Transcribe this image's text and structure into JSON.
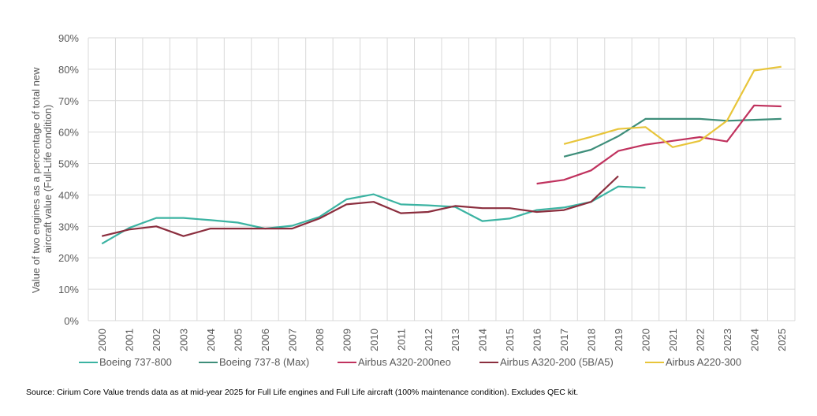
{
  "chart_data": {
    "type": "line",
    "title": "",
    "xlabel": "",
    "ylabel": "Value of two engines as a percentage of total new aircraft value (Full-Life condition)",
    "ylabel_lines": [
      "Value of two engines as a percentage of total new",
      "aircraft value (Full-Life condition)"
    ],
    "ylim": [
      0,
      90
    ],
    "y_ticks": [
      0,
      10,
      20,
      30,
      40,
      50,
      60,
      70,
      80,
      90
    ],
    "y_tick_labels": [
      "0%",
      "10%",
      "20%",
      "30%",
      "40%",
      "50%",
      "60%",
      "70%",
      "80%",
      "90%"
    ],
    "grid": true,
    "legend_position": "bottom",
    "categories": [
      "2000",
      "2001",
      "2002",
      "2003",
      "2004",
      "2005",
      "2006",
      "2007",
      "2008",
      "2009",
      "2010",
      "2011",
      "2012",
      "2013",
      "2014",
      "2015",
      "2016",
      "2017",
      "2018",
      "2019",
      "2020",
      "2021",
      "2022",
      "2023",
      "2024",
      "2025"
    ],
    "series": [
      {
        "name": "Boeing 737-800",
        "color": "#3bb3a2",
        "values": [
          24.5,
          29.5,
          32.7,
          32.7,
          32.0,
          31.2,
          29.3,
          30.2,
          33.0,
          38.6,
          40.2,
          37.0,
          36.7,
          36.2,
          31.7,
          32.5,
          35.2,
          36.0,
          37.8,
          42.7,
          42.3,
          null,
          null,
          null,
          null,
          null
        ]
      },
      {
        "name": "Boeing 737-8 (Max)",
        "color": "#3e8e7a",
        "values": [
          null,
          null,
          null,
          null,
          null,
          null,
          null,
          null,
          null,
          null,
          null,
          null,
          null,
          null,
          null,
          null,
          null,
          52.2,
          54.4,
          58.7,
          64.2,
          64.2,
          64.2,
          63.6,
          63.9,
          64.2
        ]
      },
      {
        "name": "Airbus A320-200neo",
        "color": "#c0325e",
        "values": [
          null,
          null,
          null,
          null,
          null,
          null,
          null,
          null,
          null,
          null,
          null,
          null,
          null,
          null,
          null,
          null,
          43.6,
          44.8,
          47.8,
          54.0,
          56.0,
          57.2,
          58.4,
          57.0,
          68.5,
          68.2
        ]
      },
      {
        "name": "Airbus A320-200 (5B/A5)",
        "color": "#8b2e3e",
        "values": [
          26.9,
          29.0,
          30.0,
          26.9,
          29.3,
          29.3,
          29.3,
          29.3,
          32.5,
          37.0,
          37.8,
          34.2,
          34.6,
          36.5,
          35.8,
          35.8,
          34.6,
          35.2,
          37.8,
          46.0,
          null,
          null,
          null,
          null,
          null,
          null
        ]
      },
      {
        "name": "Airbus A220-300",
        "color": "#e8c53a",
        "values": [
          null,
          null,
          null,
          null,
          null,
          null,
          null,
          null,
          null,
          null,
          null,
          null,
          null,
          null,
          null,
          null,
          null,
          56.2,
          58.5,
          61.0,
          61.6,
          55.2,
          57.2,
          63.6,
          79.6,
          80.8
        ]
      }
    ]
  },
  "legend": {
    "items": [
      {
        "label": "Boeing 737-800",
        "color": "#3bb3a2"
      },
      {
        "label": "Boeing 737-8 (Max)",
        "color": "#3e8e7a"
      },
      {
        "label": "Airbus A320-200neo",
        "color": "#c0325e"
      },
      {
        "label": "Airbus A320-200 (5B/A5)",
        "color": "#8b2e3e"
      },
      {
        "label": "Airbus A220-300",
        "color": "#e8c53a"
      }
    ]
  },
  "source_note": "Source: Cirium Core Value trends data as at mid-year 2025 for Full Life engines and Full Life aircraft (100% maintenance condition). Excludes QEC kit."
}
